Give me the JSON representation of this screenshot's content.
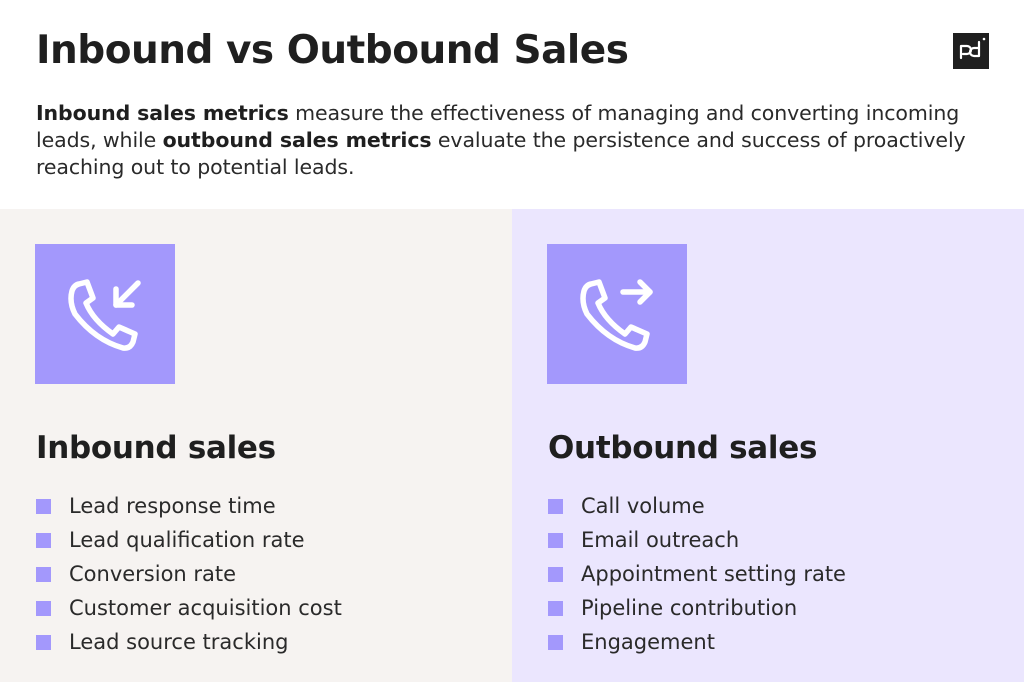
{
  "header": {
    "title": "Inbound vs Outbound Sales",
    "logo_icon": "pd-logo-icon"
  },
  "intro": {
    "part1_bold": "Inbound sales metrics",
    "part2": " measure the effectiveness of managing and converting incoming leads, while ",
    "part3_bold": "outbound sales metrics",
    "part4": " evaluate the persistence and success of proactively reaching out to potential leads."
  },
  "colors": {
    "accent": "#a398fc",
    "inbound_bg": "#f6f3f1",
    "outbound_bg": "#ebe6fe",
    "text": "#1f1f1f"
  },
  "inbound": {
    "icon": "incoming-call-icon",
    "title": "Inbound sales",
    "metrics": [
      "Lead response time",
      "Lead qualification rate",
      "Conversion rate",
      "Customer acquisition cost",
      "Lead source tracking"
    ]
  },
  "outbound": {
    "icon": "outgoing-call-icon",
    "title": "Outbound sales",
    "metrics": [
      "Call volume",
      "Email outreach",
      "Appointment setting rate",
      "Pipeline contribution",
      "Engagement"
    ]
  }
}
